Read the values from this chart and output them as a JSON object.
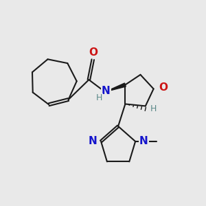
{
  "background_color": "#e9e9e9",
  "bond_color": "#1a1a1a",
  "N_color": "#1414cc",
  "O_color": "#cc1414",
  "H_color": "#5a8888",
  "fs": 11,
  "xlim": [
    0,
    10
  ],
  "ylim": [
    0,
    10
  ]
}
